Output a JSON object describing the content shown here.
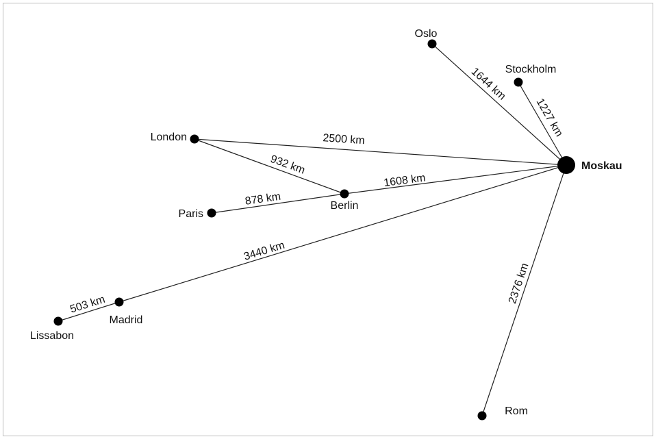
{
  "colors": {
    "edge": "#222222",
    "node": "#000000",
    "border": "#bdbdbd"
  },
  "cities": {
    "moskau": "Moskau",
    "oslo": "Oslo",
    "stockholm": "Stockholm",
    "london": "London",
    "berlin": "Berlin",
    "paris": "Paris",
    "madrid": "Madrid",
    "lissabon": "Lissabon",
    "rom": "Rom"
  },
  "hub": "moskau",
  "routes": [
    {
      "from": "oslo",
      "to": "moskau",
      "label": "1644 km"
    },
    {
      "from": "stockholm",
      "to": "moskau",
      "label": "1227 km"
    },
    {
      "from": "london",
      "to": "moskau",
      "label": "2500 km"
    },
    {
      "from": "london",
      "to": "berlin",
      "label": "932 km"
    },
    {
      "from": "berlin",
      "to": "moskau",
      "label": "1608 km"
    },
    {
      "from": "paris",
      "to": "berlin",
      "label": "878 km"
    },
    {
      "from": "madrid",
      "to": "moskau",
      "label": "3440 km"
    },
    {
      "from": "lissabon",
      "to": "madrid",
      "label": "503 km"
    },
    {
      "from": "rom",
      "to": "moskau",
      "label": "2376 km"
    }
  ]
}
